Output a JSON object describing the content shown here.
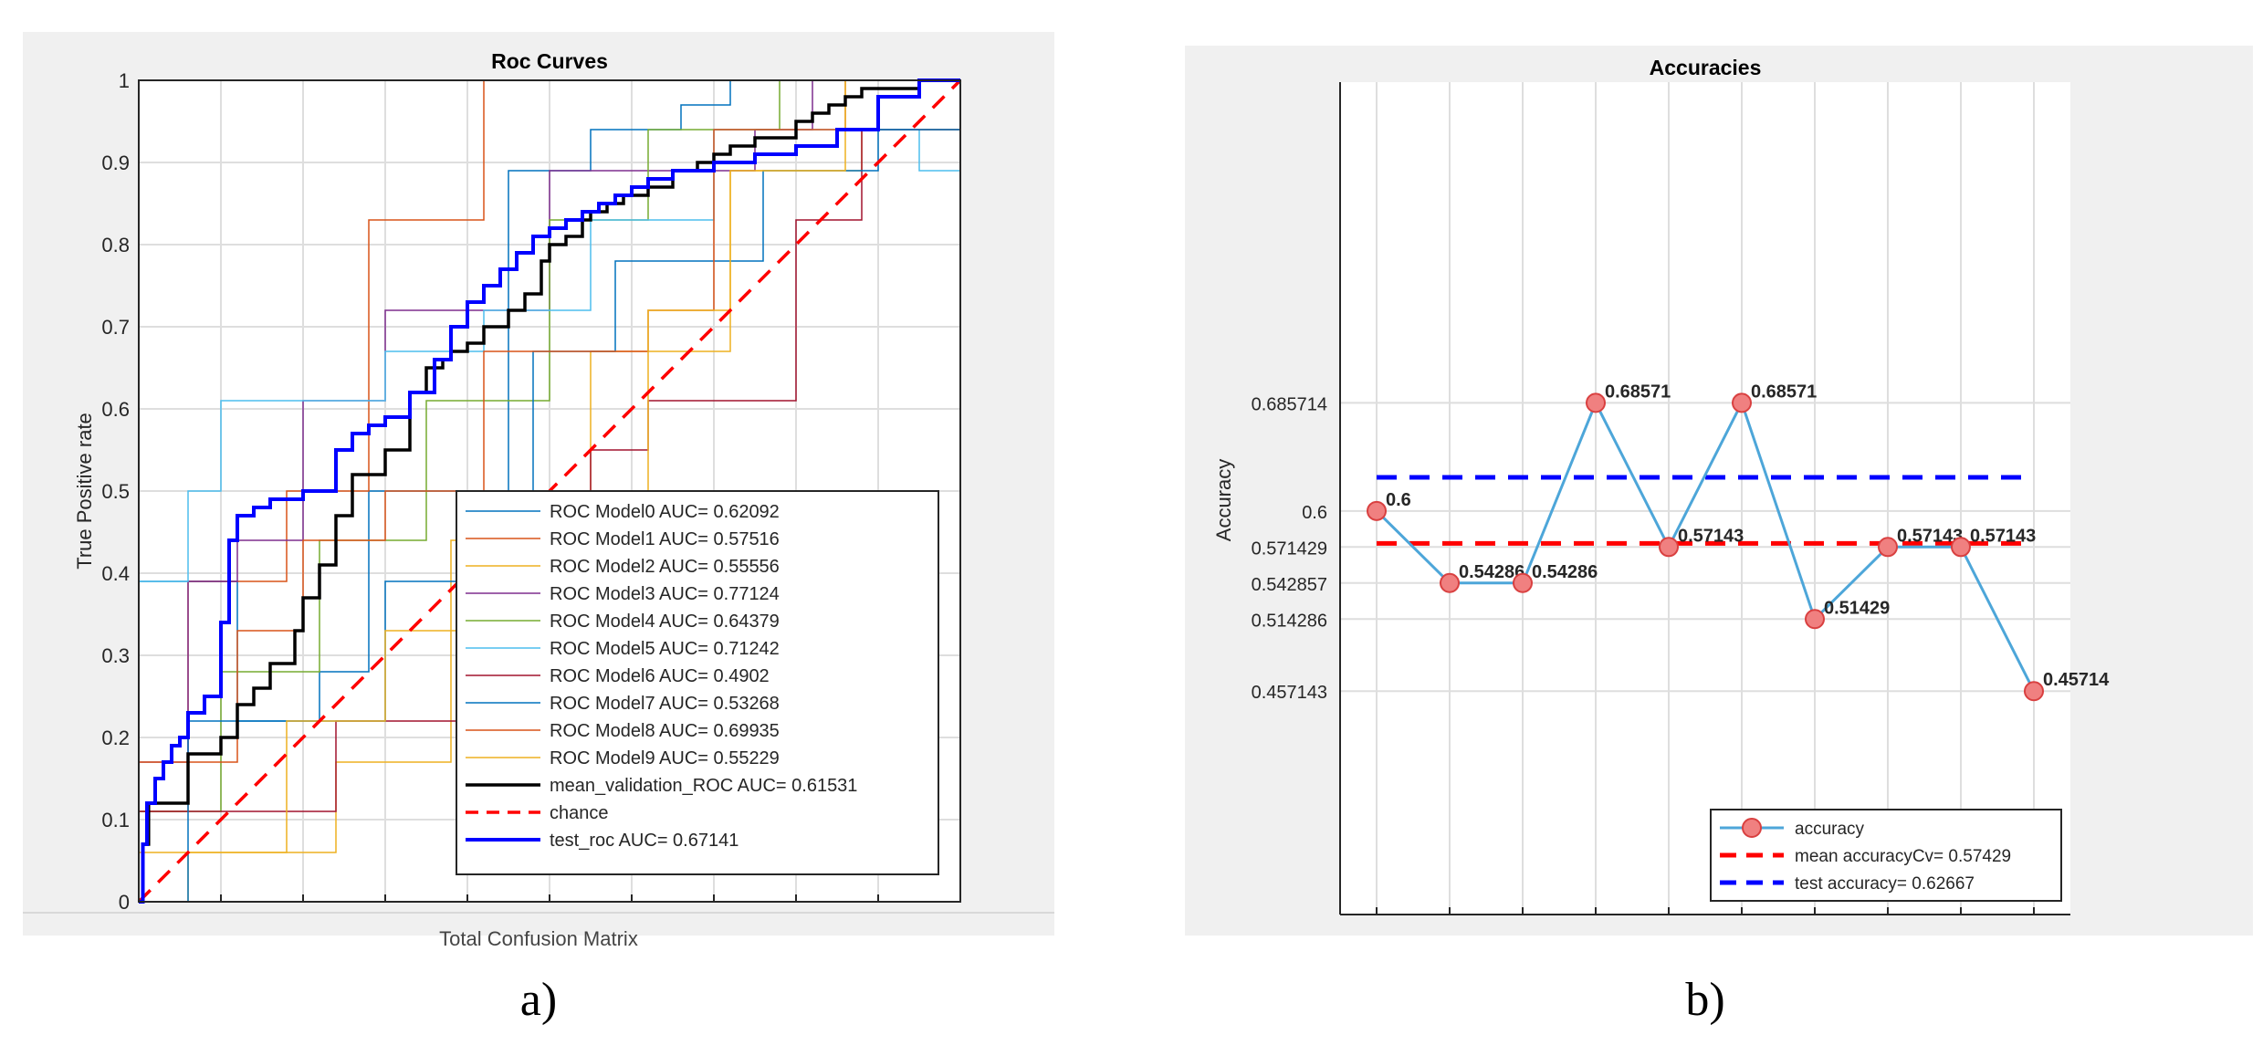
{
  "panels": [
    {
      "caption": "a)",
      "window_bottom_text": "Total Confusion Matrix"
    },
    {
      "caption": "b)"
    }
  ],
  "chart_data": [
    {
      "type": "line",
      "title": "Roc Curves",
      "xlabel": "",
      "ylabel": "True Positive rate",
      "xlim": [
        0,
        1
      ],
      "ylim": [
        0,
        1
      ],
      "yticks": [
        0,
        0.1,
        0.2,
        0.3,
        0.4,
        0.5,
        0.6,
        0.7,
        0.8,
        0.9,
        1
      ],
      "y_tick_labels": [
        "0",
        "0.1",
        "0.2",
        "0.3",
        "0.4",
        "0.5",
        "0.6",
        "0.7",
        "0.8",
        "0.9",
        "1"
      ],
      "xticks": [
        0,
        0.1,
        0.2,
        0.3,
        0.4,
        0.5,
        0.6,
        0.7,
        0.8,
        0.9,
        1
      ],
      "grid": true,
      "legend_position": "bottom-right",
      "series": [
        {
          "name": "ROC Model0 AUC= 0.62092",
          "color": "#0072BD",
          "width": 1.5,
          "dash": false,
          "x": [
            0,
            0,
            0.12,
            0.12,
            0.22,
            0.22,
            0.28,
            0.28,
            0.45,
            0.45,
            0.55,
            0.55,
            0.66,
            0.66,
            0.72,
            0.72,
            0.8,
            0.8,
            1
          ],
          "y": [
            0,
            0.39,
            0.39,
            0.22,
            0.22,
            0.28,
            0.28,
            0.5,
            0.5,
            0.89,
            0.89,
            0.94,
            0.94,
            0.97,
            0.97,
            1,
            1,
            1,
            1
          ]
        },
        {
          "name": "ROC Model1 AUC= 0.57516",
          "color": "#D95319",
          "width": 1.5,
          "dash": false,
          "x": [
            0,
            0,
            0.06,
            0.06,
            0.18,
            0.18,
            0.28,
            0.28,
            0.42,
            0.42,
            0.58,
            0.58,
            0.75,
            0.75,
            1
          ],
          "y": [
            0,
            0.11,
            0.11,
            0.39,
            0.39,
            0.5,
            0.5,
            0.83,
            0.83,
            1,
            1,
            1,
            1,
            1,
            1
          ]
        },
        {
          "name": "ROC Model2 AUC= 0.55556",
          "color": "#EDB120",
          "width": 1.5,
          "dash": false,
          "x": [
            0,
            0.06,
            0.06,
            0.24,
            0.24,
            0.38,
            0.38,
            0.55,
            0.55,
            0.72,
            0.72,
            0.88,
            0.88,
            1
          ],
          "y": [
            0,
            0,
            0.06,
            0.06,
            0.17,
            0.17,
            0.44,
            0.44,
            0.67,
            0.67,
            0.89,
            0.89,
            0.94,
            0.94
          ]
        },
        {
          "name": "ROC Model3 AUC= 0.77124",
          "color": "#7E2F8E",
          "width": 1.5,
          "dash": false,
          "x": [
            0,
            0,
            0.06,
            0.06,
            0.12,
            0.12,
            0.2,
            0.2,
            0.3,
            0.3,
            0.5,
            0.5,
            0.75,
            0.75,
            0.82,
            0.82,
            1
          ],
          "y": [
            0,
            0.17,
            0.17,
            0.39,
            0.39,
            0.44,
            0.44,
            0.61,
            0.61,
            0.72,
            0.72,
            0.89,
            0.89,
            0.94,
            0.94,
            1,
            1
          ]
        },
        {
          "name": "ROC Model4 AUC= 0.64379",
          "color": "#77AC30",
          "width": 1.5,
          "dash": false,
          "x": [
            0,
            0,
            0.1,
            0.1,
            0.22,
            0.22,
            0.35,
            0.35,
            0.5,
            0.5,
            0.62,
            0.62,
            0.78,
            0.78,
            1
          ],
          "y": [
            0,
            0.11,
            0.11,
            0.28,
            0.28,
            0.44,
            0.44,
            0.61,
            0.61,
            0.83,
            0.83,
            0.94,
            0.94,
            1,
            1
          ]
        },
        {
          "name": "ROC Model5 AUC= 0.71242",
          "color": "#4DBEEE",
          "width": 1.5,
          "dash": false,
          "x": [
            0,
            0,
            0.06,
            0.06,
            0.1,
            0.1,
            0.18,
            0.18,
            0.3,
            0.3,
            0.42,
            0.42,
            0.55,
            0.55,
            0.7,
            0.7,
            0.82,
            0.82,
            0.95,
            0.95,
            1
          ],
          "y": [
            0,
            0.39,
            0.39,
            0.5,
            0.5,
            0.61,
            0.61,
            0.61,
            0.61,
            0.67,
            0.67,
            0.72,
            0.72,
            0.83,
            0.83,
            0.94,
            0.94,
            0.94,
            0.94,
            0.89,
            0.89
          ]
        },
        {
          "name": "ROC Model6 AUC= 0.4902",
          "color": "#A2142F",
          "width": 1.5,
          "dash": false,
          "x": [
            0,
            0,
            0.24,
            0.24,
            0.48,
            0.48,
            0.55,
            0.55,
            0.62,
            0.62,
            0.8,
            0.8,
            0.88,
            0.88,
            1
          ],
          "y": [
            0,
            0.11,
            0.11,
            0.22,
            0.22,
            0.5,
            0.5,
            0.55,
            0.55,
            0.61,
            0.61,
            0.83,
            0.83,
            0.94,
            0.94
          ]
        },
        {
          "name": "ROC Model7 AUC= 0.53268",
          "color": "#0072BD",
          "width": 1.5,
          "dash": false,
          "x": [
            0,
            0.06,
            0.06,
            0.3,
            0.3,
            0.48,
            0.48,
            0.58,
            0.58,
            0.76,
            0.76,
            0.9,
            0.9,
            1
          ],
          "y": [
            0,
            0,
            0.22,
            0.22,
            0.39,
            0.39,
            0.67,
            0.67,
            0.78,
            0.78,
            0.89,
            0.89,
            0.94,
            0.94
          ]
        },
        {
          "name": "ROC Model8 AUC= 0.69935",
          "color": "#D95319",
          "width": 1.5,
          "dash": false,
          "x": [
            0,
            0,
            0.12,
            0.12,
            0.2,
            0.2,
            0.3,
            0.3,
            0.42,
            0.42,
            0.62,
            0.62,
            0.7,
            0.7,
            0.86,
            0.86,
            1
          ],
          "y": [
            0,
            0.17,
            0.17,
            0.33,
            0.33,
            0.44,
            0.44,
            0.5,
            0.5,
            0.67,
            0.67,
            0.72,
            0.72,
            0.94,
            0.94,
            1,
            1
          ]
        },
        {
          "name": "ROC Model9 AUC= 0.55229",
          "color": "#EDB120",
          "width": 1.5,
          "dash": false,
          "x": [
            0,
            0,
            0.18,
            0.18,
            0.3,
            0.3,
            0.5,
            0.5,
            0.62,
            0.62,
            0.72,
            0.72,
            0.86,
            0.86,
            1
          ],
          "y": [
            0,
            0.06,
            0.06,
            0.22,
            0.22,
            0.33,
            0.33,
            0.5,
            0.5,
            0.72,
            0.72,
            0.89,
            0.89,
            1,
            1
          ]
        },
        {
          "name": "mean_validation_ROC  AUC=  0.61531",
          "color": "#000000",
          "width": 3.5,
          "dash": false,
          "x": [
            0,
            0.005,
            0.005,
            0.012,
            0.012,
            0.06,
            0.06,
            0.1,
            0.1,
            0.12,
            0.12,
            0.14,
            0.14,
            0.16,
            0.16,
            0.19,
            0.19,
            0.2,
            0.2,
            0.22,
            0.22,
            0.24,
            0.24,
            0.26,
            0.26,
            0.3,
            0.3,
            0.33,
            0.33,
            0.35,
            0.35,
            0.37,
            0.37,
            0.38,
            0.38,
            0.4,
            0.4,
            0.42,
            0.42,
            0.45,
            0.45,
            0.47,
            0.47,
            0.49,
            0.49,
            0.5,
            0.5,
            0.52,
            0.52,
            0.54,
            0.54,
            0.55,
            0.55,
            0.57,
            0.57,
            0.59,
            0.59,
            0.62,
            0.62,
            0.65,
            0.65,
            0.68,
            0.68,
            0.7,
            0.7,
            0.72,
            0.72,
            0.75,
            0.75,
            0.8,
            0.8,
            0.82,
            0.82,
            0.84,
            0.84,
            0.86,
            0.86,
            0.88,
            0.88,
            0.9,
            0.9,
            0.95,
            0.95,
            1
          ],
          "y": [
            0,
            0,
            0.07,
            0.07,
            0.12,
            0.12,
            0.18,
            0.18,
            0.2,
            0.2,
            0.24,
            0.24,
            0.26,
            0.26,
            0.29,
            0.29,
            0.33,
            0.33,
            0.37,
            0.37,
            0.41,
            0.41,
            0.47,
            0.47,
            0.52,
            0.52,
            0.55,
            0.55,
            0.62,
            0.62,
            0.65,
            0.65,
            0.66,
            0.66,
            0.67,
            0.67,
            0.68,
            0.68,
            0.7,
            0.7,
            0.72,
            0.72,
            0.74,
            0.74,
            0.78,
            0.78,
            0.8,
            0.8,
            0.81,
            0.81,
            0.83,
            0.83,
            0.84,
            0.84,
            0.85,
            0.85,
            0.86,
            0.86,
            0.87,
            0.87,
            0.89,
            0.89,
            0.9,
            0.9,
            0.91,
            0.91,
            0.92,
            0.92,
            0.93,
            0.93,
            0.95,
            0.95,
            0.96,
            0.96,
            0.97,
            0.97,
            0.98,
            0.98,
            0.99,
            0.99,
            0.99,
            0.99,
            1,
            1
          ]
        },
        {
          "name": "chance",
          "color": "#FF0000",
          "width": 3.5,
          "dash": true,
          "x": [
            0,
            1
          ],
          "y": [
            0,
            1
          ]
        },
        {
          "name": "test_roc  AUC=  0.67141",
          "color": "#0000FF",
          "width": 4,
          "dash": false,
          "x": [
            0,
            0.005,
            0.005,
            0.01,
            0.01,
            0.02,
            0.02,
            0.03,
            0.03,
            0.04,
            0.04,
            0.05,
            0.05,
            0.06,
            0.06,
            0.08,
            0.08,
            0.1,
            0.1,
            0.11,
            0.11,
            0.12,
            0.12,
            0.14,
            0.14,
            0.16,
            0.16,
            0.2,
            0.2,
            0.24,
            0.24,
            0.26,
            0.26,
            0.28,
            0.28,
            0.3,
            0.3,
            0.33,
            0.33,
            0.36,
            0.36,
            0.38,
            0.38,
            0.4,
            0.4,
            0.42,
            0.42,
            0.44,
            0.44,
            0.46,
            0.46,
            0.48,
            0.48,
            0.5,
            0.5,
            0.52,
            0.52,
            0.54,
            0.54,
            0.56,
            0.56,
            0.58,
            0.58,
            0.6,
            0.6,
            0.62,
            0.62,
            0.65,
            0.65,
            0.7,
            0.7,
            0.75,
            0.75,
            0.8,
            0.8,
            0.85,
            0.85,
            0.9,
            0.9,
            0.95,
            0.95,
            1
          ],
          "y": [
            0,
            0,
            0.07,
            0.07,
            0.12,
            0.12,
            0.15,
            0.15,
            0.17,
            0.17,
            0.19,
            0.19,
            0.2,
            0.2,
            0.23,
            0.23,
            0.25,
            0.25,
            0.34,
            0.34,
            0.44,
            0.44,
            0.47,
            0.47,
            0.48,
            0.48,
            0.49,
            0.49,
            0.5,
            0.5,
            0.55,
            0.55,
            0.57,
            0.57,
            0.58,
            0.58,
            0.59,
            0.59,
            0.62,
            0.62,
            0.66,
            0.66,
            0.7,
            0.7,
            0.73,
            0.73,
            0.75,
            0.75,
            0.77,
            0.77,
            0.79,
            0.79,
            0.81,
            0.81,
            0.82,
            0.82,
            0.83,
            0.83,
            0.84,
            0.84,
            0.85,
            0.85,
            0.86,
            0.86,
            0.87,
            0.87,
            0.88,
            0.88,
            0.89,
            0.89,
            0.9,
            0.9,
            0.91,
            0.91,
            0.92,
            0.92,
            0.94,
            0.94,
            0.98,
            0.98,
            1,
            1
          ]
        }
      ]
    },
    {
      "type": "line",
      "title": "Accuracies",
      "xlabel": "",
      "ylabel": "Accuracy",
      "xlim": [
        0.5,
        10.5
      ],
      "ylim": [
        0.28,
        0.94
      ],
      "yticks": [
        0.457143,
        0.514286,
        0.542857,
        0.571429,
        0.6,
        0.685714
      ],
      "y_tick_labels": [
        "0.457143",
        "0.514286",
        "0.542857",
        "0.571429",
        "0.6",
        "0.685714"
      ],
      "grid": true,
      "legend_position": "bottom-right",
      "categories": [
        1,
        2,
        3,
        4,
        5,
        6,
        7,
        8,
        9,
        10
      ],
      "series": [
        {
          "name": "accuracy",
          "color": "#4DA6D9",
          "marker_color": "#F08080",
          "x": [
            1,
            2,
            3,
            4,
            5,
            6,
            7,
            8,
            9,
            10
          ],
          "values": [
            0.6,
            0.54286,
            0.54286,
            0.68571,
            0.57143,
            0.68571,
            0.51429,
            0.57143,
            0.57143,
            0.45714
          ],
          "point_labels": [
            "0.6",
            "0.54286",
            "0.54286",
            "0.68571",
            "0.57143",
            "0.68571",
            "0.51429",
            "0.57143",
            "0.57143",
            "0.45714"
          ]
        },
        {
          "name": "mean accuracyCv= 0.57429",
          "color": "#FF0000",
          "dash": true,
          "value": 0.57429
        },
        {
          "name": "test accuracy= 0.62667",
          "color": "#0000FF",
          "dash": true,
          "value": 0.62667
        }
      ]
    }
  ]
}
